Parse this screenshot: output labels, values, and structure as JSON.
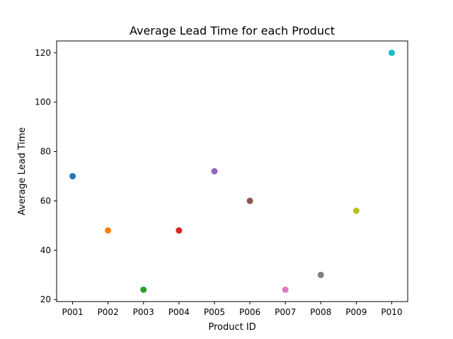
{
  "chart_data": {
    "type": "scatter",
    "title": "Average Lead Time for each Product",
    "xlabel": "Product ID",
    "ylabel": "Average Lead Time",
    "categories": [
      "P001",
      "P002",
      "P003",
      "P004",
      "P005",
      "P006",
      "P007",
      "P008",
      "P009",
      "P010"
    ],
    "values": [
      70,
      48,
      24,
      48,
      72,
      60,
      24,
      30,
      56,
      120
    ],
    "colors": [
      "#1f77b4",
      "#ff7f0e",
      "#2ca02c",
      "#d62728",
      "#9467bd",
      "#8c564b",
      "#e377c2",
      "#7f7f7f",
      "#bcbd22",
      "#17becf"
    ],
    "ylim": [
      19.2,
      124.8
    ],
    "yticks": [
      20,
      40,
      60,
      80,
      100,
      120
    ],
    "grid": false,
    "legend": "none"
  }
}
